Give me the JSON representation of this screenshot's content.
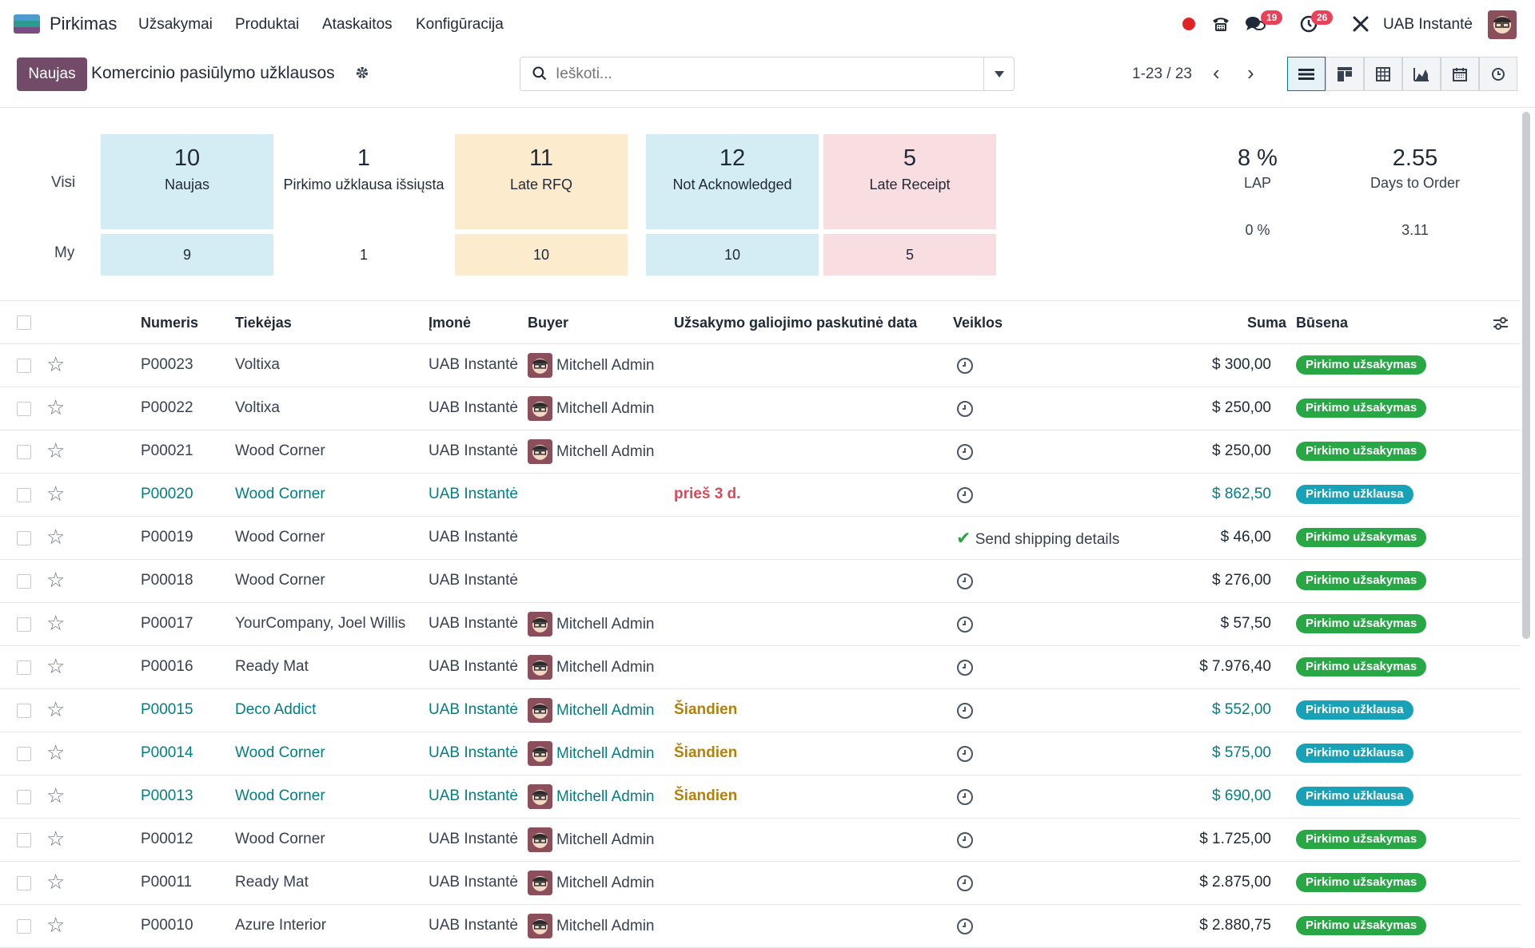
{
  "app": {
    "name": "Pirkimas"
  },
  "menu": [
    "Užsakymai",
    "Produktai",
    "Ataskaitos",
    "Konfigūracija"
  ],
  "systray": {
    "messages_badge": "19",
    "activities_badge": "26",
    "company": "UAB Instantė"
  },
  "control_panel": {
    "new_button": "Naujas",
    "title": "Komercinio pasiūlymo užklausos",
    "search_placeholder": "Ieškoti...",
    "pager": "1-23 / 23"
  },
  "dashboard": {
    "row_all": "Visi",
    "row_my": "My",
    "tiles": [
      {
        "all": "10",
        "label": "Naujas",
        "my": "9",
        "color": "#d4ecf3"
      },
      {
        "all": "1",
        "label": "Pirkimo užklausa išsiųsta",
        "my": "1",
        "color": "#ffffff"
      },
      {
        "all": "11",
        "label": "Late RFQ",
        "my": "10",
        "color": "#fcebcd"
      },
      {
        "all": "12",
        "label": "Not Acknowledged",
        "my": "10",
        "color": "#d4ecf3"
      },
      {
        "all": "5",
        "label": "Late Receipt",
        "my": "5",
        "color": "#f8dde1"
      }
    ],
    "stats": [
      {
        "all": "8 %",
        "label": "LAP",
        "my": "0 %"
      },
      {
        "all": "2.55",
        "label": "Days to Order",
        "my": "3.11"
      }
    ]
  },
  "table": {
    "headers": {
      "number": "Numeris",
      "vendor": "Tiekėjas",
      "company": "Įmonė",
      "buyer": "Buyer",
      "deadline": "Užsakymo galiojimo paskutinė data",
      "activities": "Veiklos",
      "total": "Suma",
      "status": "Būsena"
    },
    "rows": [
      {
        "number": "P00023",
        "vendor": "Voltixa",
        "company": "UAB Instantė",
        "buyer": "Mitchell Admin",
        "deadline": "",
        "activity": "",
        "total": "$ 300,00",
        "status": "Pirkimo užsakymas"
      },
      {
        "number": "P00022",
        "vendor": "Voltixa",
        "company": "UAB Instantė",
        "buyer": "Mitchell Admin",
        "deadline": "",
        "activity": "",
        "total": "$ 250,00",
        "status": "Pirkimo užsakymas"
      },
      {
        "number": "P00021",
        "vendor": "Wood Corner",
        "company": "UAB Instantė",
        "buyer": "Mitchell Admin",
        "deadline": "",
        "activity": "",
        "total": "$ 250,00",
        "status": "Pirkimo užsakymas"
      },
      {
        "number": "P00020",
        "vendor": "Wood Corner",
        "company": "UAB Instantė",
        "buyer": "",
        "deadline": "prieš 3 d.",
        "activity": "",
        "total": "$ 862,50",
        "status": "Pirkimo užklausa"
      },
      {
        "number": "P00019",
        "vendor": "Wood Corner",
        "company": "UAB Instantė",
        "buyer": "",
        "deadline": "",
        "activity": "Send shipping details",
        "total": "$ 46,00",
        "status": "Pirkimo užsakymas"
      },
      {
        "number": "P00018",
        "vendor": "Wood Corner",
        "company": "UAB Instantė",
        "buyer": "",
        "deadline": "",
        "activity": "",
        "total": "$ 276,00",
        "status": "Pirkimo užsakymas"
      },
      {
        "number": "P00017",
        "vendor": "YourCompany, Joel Willis",
        "company": "UAB Instantė",
        "buyer": "Mitchell Admin",
        "deadline": "",
        "activity": "",
        "total": "$ 57,50",
        "status": "Pirkimo užsakymas"
      },
      {
        "number": "P00016",
        "vendor": "Ready Mat",
        "company": "UAB Instantė",
        "buyer": "Mitchell Admin",
        "deadline": "",
        "activity": "",
        "total": "$ 7.976,40",
        "status": "Pirkimo užsakymas"
      },
      {
        "number": "P00015",
        "vendor": "Deco Addict",
        "company": "UAB Instantė",
        "buyer": "Mitchell Admin",
        "deadline": "Šiandien",
        "activity": "",
        "total": "$ 552,00",
        "status": "Pirkimo užklausa"
      },
      {
        "number": "P00014",
        "vendor": "Wood Corner",
        "company": "UAB Instantė",
        "buyer": "Mitchell Admin",
        "deadline": "Šiandien",
        "activity": "",
        "total": "$ 575,00",
        "status": "Pirkimo užklausa"
      },
      {
        "number": "P00013",
        "vendor": "Wood Corner",
        "company": "UAB Instantė",
        "buyer": "Mitchell Admin",
        "deadline": "Šiandien",
        "activity": "",
        "total": "$ 690,00",
        "status": "Pirkimo užklausa"
      },
      {
        "number": "P00012",
        "vendor": "Wood Corner",
        "company": "UAB Instantė",
        "buyer": "Mitchell Admin",
        "deadline": "",
        "activity": "",
        "total": "$ 1.725,00",
        "status": "Pirkimo užsakymas"
      },
      {
        "number": "P00011",
        "vendor": "Ready Mat",
        "company": "UAB Instantė",
        "buyer": "Mitchell Admin",
        "deadline": "",
        "activity": "",
        "total": "$ 2.875,00",
        "status": "Pirkimo užsakymas"
      },
      {
        "number": "P00010",
        "vendor": "Azure Interior",
        "company": "UAB Instantė",
        "buyer": "Mitchell Admin",
        "deadline": "",
        "activity": "",
        "total": "$ 2.880,75",
        "status": "Pirkimo užsakymas"
      }
    ]
  }
}
